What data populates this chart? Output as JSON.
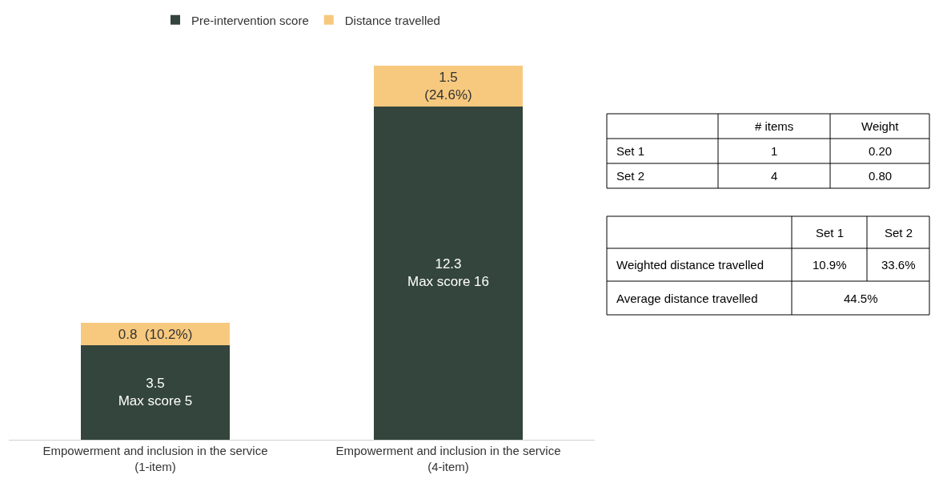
{
  "chart_data": [
    {
      "type": "bar",
      "stacked": true,
      "legend": "top",
      "categories": [
        "Empowerment and inclusion in the service (1-item)",
        "Empowerment and inclusion in the service (4-item)"
      ],
      "series": [
        {
          "name": "Pre-intervention score",
          "color": "#33453d",
          "values": [
            3.5,
            12.3
          ],
          "value_labels": [
            "3.5\nMax score 5",
            "12.3\nMax score 16"
          ]
        },
        {
          "name": "Distance travelled",
          "color": "#f7c97e",
          "values": [
            0.8,
            1.5
          ],
          "value_labels": [
            "0.8  (10.2%)",
            "1.5\n(24.6%)"
          ]
        }
      ]
    },
    {
      "type": "other",
      "categories": [
        "# items",
        "Weight"
      ],
      "y_categories": [
        "Set 1",
        "Set 2"
      ],
      "cell_labels": [
        [
          "1",
          "0.20"
        ],
        [
          "4",
          "0.80"
        ]
      ]
    },
    {
      "type": "other",
      "categories": [
        "Set 1",
        "Set 2"
      ],
      "y_categories": [
        "Weighted distance travelled",
        "Average distance travelled"
      ],
      "cell_labels": [
        [
          "10.9%",
          "33.6%"
        ],
        [
          "44.5%",
          null
        ]
      ]
    }
  ]
}
